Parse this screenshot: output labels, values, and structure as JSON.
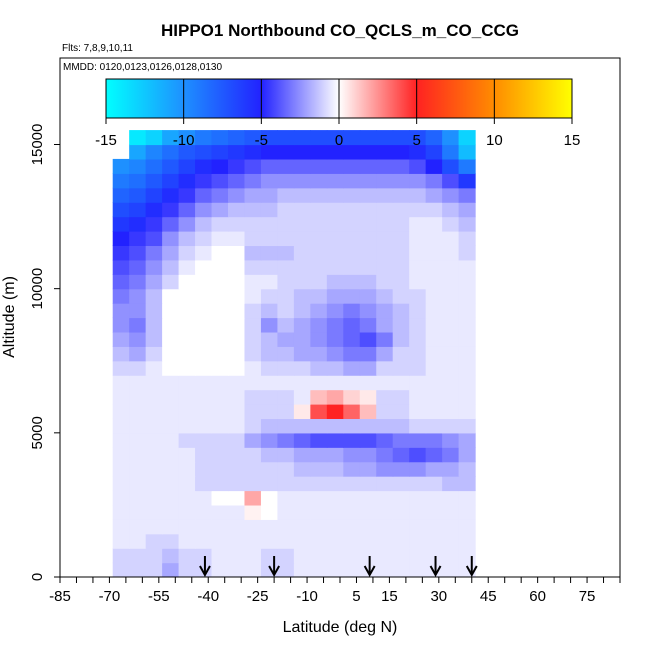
{
  "chart_data": {
    "type": "heatmap",
    "title": "HIPPO1 Northbound CO_QCLS_m_CO_CCG",
    "flights_label": "Flts: 7,8,9,10,11",
    "dates_label": "MMDD: 0120,0123,0126,0128,0130",
    "xlabel": "Latitude (deg N)",
    "ylabel": "Altitude (m)",
    "xlim": [
      -85,
      85
    ],
    "ylim": [
      0,
      18000
    ],
    "x_minor_step": 5,
    "xticks": [
      -85,
      -70,
      -55,
      -40,
      -25,
      -10,
      5,
      15,
      30,
      45,
      60,
      75
    ],
    "xtick_labels": [
      "-85",
      "-70",
      "-55",
      "-40",
      "-25",
      "-10",
      "5",
      "15",
      "30",
      "45",
      "60",
      "75"
    ],
    "yticks": [
      0,
      5000,
      10000,
      15000
    ],
    "ytick_labels": [
      "0",
      "5000",
      "10000",
      "15000"
    ],
    "colorbar": {
      "range": [
        -15,
        15
      ],
      "ticks": [
        -15,
        -10,
        -5,
        0,
        5,
        10,
        15
      ],
      "tick_labels": [
        "-15",
        "-10",
        "-5",
        "0",
        "5",
        "10",
        "15"
      ],
      "stops": [
        {
          "v": -15,
          "color": "#00ffff"
        },
        {
          "v": -10,
          "color": "#1e90ff"
        },
        {
          "v": -5,
          "color": "#2222ff"
        },
        {
          "v": 0,
          "color": "#ffffff"
        },
        {
          "v": 5,
          "color": "#ff2222"
        },
        {
          "v": 10,
          "color": "#ff8c00"
        },
        {
          "v": 15,
          "color": "#ffff00"
        }
      ]
    },
    "profile_latitudes": [
      -41,
      -20,
      9,
      29,
      40
    ],
    "grid": {
      "lat_start": -69,
      "lat_step": 5,
      "alt_start": 0,
      "alt_step": 500,
      "rows": [
        [
          -1,
          -1,
          -1,
          -2,
          -1,
          -1,
          -0.5,
          -0.5,
          -0.5,
          -1,
          -1,
          -0.5,
          -0.5,
          -0.5,
          -0.5,
          -0.5,
          -0.5,
          -0.5,
          -0.5,
          -0.5,
          -0.5,
          -0.5
        ],
        [
          -1,
          -1,
          -1,
          -1.5,
          -1,
          -1,
          -0.5,
          -0.5,
          -0.5,
          -1,
          -1,
          -0.5,
          -0.5,
          -0.5,
          -0.5,
          -0.5,
          -0.5,
          -0.5,
          -0.5,
          -0.5,
          -0.5,
          -0.5
        ],
        [
          -0.5,
          -0.5,
          -1,
          -1,
          -0.5,
          -0.5,
          -0.5,
          -0.5,
          -0.5,
          -0.5,
          -0.5,
          -0.5,
          -0.5,
          -0.5,
          -0.5,
          -0.5,
          -0.5,
          -0.5,
          -0.5,
          -0.5,
          -0.5,
          -0.5
        ],
        [
          -0.5,
          -0.5,
          -0.5,
          -0.5,
          -0.5,
          -0.5,
          -0.5,
          -0.5,
          -0.5,
          -0.5,
          -0.5,
          -0.5,
          -0.5,
          -0.5,
          -0.5,
          -0.5,
          -0.5,
          -0.5,
          -0.5,
          -0.5,
          -0.5,
          -0.5
        ],
        [
          -0.5,
          -0.5,
          -0.5,
          -0.5,
          -0.5,
          -0.5,
          -0.5,
          -0.5,
          0.3,
          0,
          -0.5,
          -0.5,
          -0.5,
          -0.5,
          -0.5,
          -0.5,
          -0.5,
          -0.5,
          -0.5,
          -0.5,
          -0.5,
          -0.5
        ],
        [
          -0.5,
          -0.5,
          -0.5,
          -0.5,
          -0.5,
          -0.5,
          0,
          0,
          2,
          0,
          -0.5,
          -0.5,
          -0.5,
          -0.5,
          -0.5,
          -0.5,
          -0.5,
          -0.5,
          -0.5,
          -0.5,
          -0.5,
          -0.5
        ],
        [
          -0.5,
          -0.5,
          -0.5,
          -0.5,
          -0.5,
          -1,
          -1,
          -1,
          -1,
          -1,
          -1,
          -1,
          -1,
          -1,
          -1,
          -1,
          -1,
          -1,
          -1,
          -1,
          -1.5,
          -1.5
        ],
        [
          -0.5,
          -0.5,
          -0.5,
          -0.5,
          -0.5,
          -1,
          -1,
          -1,
          -1,
          -1,
          -1,
          -1.5,
          -1.5,
          -1.5,
          -2,
          -2,
          -2.5,
          -2.5,
          -2.5,
          -2,
          -2,
          -1.5
        ],
        [
          -0.5,
          -0.5,
          -0.5,
          -0.5,
          -0.5,
          -1,
          -1,
          -1,
          -1,
          -1.5,
          -1.5,
          -2,
          -2,
          -2,
          -2.5,
          -2.5,
          -3,
          -3.5,
          -4,
          -3.5,
          -3,
          -2
        ],
        [
          -0.5,
          -0.5,
          -0.5,
          -0.5,
          -1,
          -1,
          -1,
          -1,
          -2,
          -2.5,
          -3,
          -3.5,
          -4,
          -4,
          -4,
          -4,
          -3.5,
          -3,
          -3,
          -3,
          -2.5,
          -2
        ],
        [
          -0.5,
          -0.5,
          -0.5,
          -0.5,
          -0.5,
          -0.5,
          -0.5,
          -0.5,
          -1,
          -1.5,
          -1.5,
          -1.5,
          -1.5,
          -1.5,
          -1.5,
          -1.5,
          -1.5,
          -1.5,
          -1,
          -1,
          -1,
          -1
        ],
        [
          -0.5,
          -0.5,
          -0.5,
          -0.5,
          -0.5,
          -0.5,
          -0.5,
          -0.5,
          -1,
          -1,
          -1,
          0.5,
          4,
          5,
          3.5,
          1.5,
          -1,
          -1,
          -0.5,
          -0.5,
          -0.5,
          -0.5
        ],
        [
          -0.5,
          -0.5,
          -0.5,
          -0.5,
          -0.5,
          -0.5,
          -0.5,
          -0.5,
          -1,
          -1,
          -1,
          -0.5,
          1.5,
          2,
          1,
          0.5,
          -1,
          -1,
          -0.5,
          -0.5,
          -0.5,
          -0.5
        ],
        [
          -0.5,
          -0.5,
          -0.5,
          -0.5,
          -0.5,
          -0.5,
          -0.5,
          -0.5,
          -0.5,
          -0.5,
          -0.5,
          -0.5,
          -0.5,
          -0.5,
          -0.5,
          -0.5,
          -0.5,
          -0.5,
          -0.5,
          -0.5,
          -0.5,
          -0.5
        ],
        [
          -1,
          -1,
          -0.5,
          0,
          0,
          0,
          0,
          0,
          -0.5,
          -1,
          -1,
          -1,
          -1.5,
          -1.5,
          -2,
          -2,
          -1,
          -1,
          -1,
          -0.5,
          -0.5,
          -0.5
        ],
        [
          -1.5,
          -2,
          -1,
          0,
          0,
          0,
          0,
          0,
          -1,
          -1.5,
          -1.5,
          -2,
          -2,
          -2.5,
          -3,
          -3,
          -2,
          -1,
          -1,
          -0.5,
          -0.5,
          -0.5
        ],
        [
          -2,
          -2.5,
          -1.5,
          0,
          0,
          0,
          0,
          0,
          -1,
          -1.5,
          -2,
          -2,
          -2.5,
          -3,
          -3.5,
          -4,
          -3,
          -1.5,
          -1,
          -0.5,
          -0.5,
          -0.5
        ],
        [
          -2.5,
          -3,
          -1.5,
          0,
          0,
          0,
          0,
          0,
          -1,
          -2.5,
          -1.5,
          -2,
          -2.5,
          -3,
          -3.5,
          -3,
          -2,
          -1.5,
          -1,
          -0.5,
          -0.5,
          -0.5
        ],
        [
          -2.5,
          -2.5,
          -1.5,
          0,
          0,
          0,
          0,
          0,
          -1,
          -1.5,
          -1,
          -1.5,
          -2,
          -2.5,
          -3,
          -2.5,
          -2,
          -1.5,
          -1,
          -0.5,
          -0.5,
          -0.5
        ],
        [
          -3,
          -2.5,
          -1.5,
          0,
          0,
          0,
          0,
          0,
          -0.5,
          -1,
          -1,
          -1.5,
          -1.5,
          -2,
          -2,
          -2,
          -1.5,
          -1,
          -1,
          -0.5,
          -0.5,
          -0.5
        ],
        [
          -3.5,
          -3,
          -2,
          -1,
          0,
          0,
          0,
          0,
          -0.5,
          -0.5,
          -1,
          -1,
          -1,
          -1.5,
          -1.5,
          -1.5,
          -1,
          -1,
          -0.5,
          -0.5,
          -0.5,
          -0.5
        ],
        [
          -4,
          -3.5,
          -2.5,
          -1.5,
          -0.5,
          0,
          0,
          0,
          -1,
          -1,
          -1,
          -1,
          -1,
          -1,
          -1,
          -1,
          -1,
          -1,
          -0.5,
          -0.5,
          -0.5,
          -0.5
        ],
        [
          -4.5,
          -4,
          -3,
          -2,
          -1,
          -0.5,
          0,
          0,
          -1.5,
          -1.5,
          -1.5,
          -1,
          -1,
          -1,
          -1,
          -1,
          -1,
          -1,
          -0.5,
          -0.5,
          -0.5,
          -1
        ],
        [
          -5,
          -4.5,
          -4,
          -2.5,
          -1.5,
          -1,
          -0.5,
          -0.5,
          -1,
          -1,
          -1,
          -1,
          -1,
          -1,
          -1,
          -1,
          -1,
          -1,
          -0.5,
          -0.5,
          -0.5,
          -1
        ],
        [
          -6,
          -5.5,
          -4.5,
          -3.5,
          -2.5,
          -1.5,
          -1,
          -1,
          -1,
          -1,
          -1,
          -1,
          -1,
          -1,
          -1,
          -1,
          -1,
          -1,
          -0.5,
          -0.5,
          -1,
          -1.5
        ],
        [
          -7,
          -6.5,
          -5.5,
          -4.5,
          -3.5,
          -2.5,
          -2,
          -1.5,
          -1.5,
          -1.5,
          -1,
          -1,
          -1,
          -1,
          -1,
          -1,
          -1,
          -1,
          -1,
          -1,
          -1.5,
          -2
        ],
        [
          -8,
          -7.5,
          -6.5,
          -5.5,
          -4.5,
          -3.5,
          -3,
          -2.5,
          -2,
          -2,
          -1.5,
          -1.5,
          -1.5,
          -1.5,
          -1.5,
          -1.5,
          -1.5,
          -1.5,
          -1.5,
          -2,
          -2.5,
          -3
        ],
        [
          -9,
          -8.5,
          -7.5,
          -6.5,
          -5.5,
          -4.5,
          -4,
          -3.5,
          -3,
          -2.5,
          -2.5,
          -2.5,
          -2.5,
          -2.5,
          -2.5,
          -2.5,
          -2.5,
          -2.5,
          -2.5,
          -3,
          -4,
          -6
        ],
        [
          -10,
          -9.5,
          -8.5,
          -7.5,
          -6.5,
          -5.5,
          -5,
          -4.5,
          -4,
          -3.5,
          -3.5,
          -3.5,
          -3.5,
          -3.5,
          -3.5,
          -3.5,
          -3.5,
          -3.5,
          -4,
          -5,
          -7,
          -9
        ],
        [
          null,
          -11,
          -9.5,
          -8.5,
          -7.5,
          -7,
          -6.5,
          -6,
          -5.5,
          -5,
          -5,
          -5,
          -5,
          -5,
          -5,
          -5,
          -5,
          -5,
          -5.5,
          -6.5,
          -9,
          -12
        ],
        [
          null,
          -14,
          -13,
          -11,
          -10,
          -9,
          -8.5,
          -8,
          -7.5,
          -7,
          -7,
          -7,
          -7,
          -7,
          -7,
          -7,
          -7,
          -7,
          -7,
          -8,
          -10,
          -13
        ]
      ]
    }
  }
}
